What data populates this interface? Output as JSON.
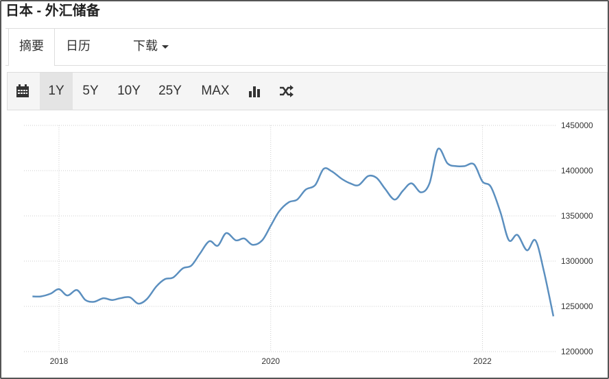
{
  "header": {
    "title": "日本 - 外汇储备"
  },
  "tabs": [
    "摘要",
    "日历",
    "下载"
  ],
  "toolbar": [
    "1Y",
    "5Y",
    "10Y",
    "25Y",
    "MAX"
  ],
  "chart_data": {
    "type": "line",
    "x": [
      2017.75,
      2017.83,
      2017.92,
      2018.0,
      2018.08,
      2018.17,
      2018.25,
      2018.33,
      2018.42,
      2018.5,
      2018.58,
      2018.67,
      2018.75,
      2018.83,
      2018.92,
      2019.0,
      2019.08,
      2019.17,
      2019.25,
      2019.33,
      2019.42,
      2019.5,
      2019.58,
      2019.67,
      2019.75,
      2019.83,
      2019.92,
      2020.0,
      2020.08,
      2020.17,
      2020.25,
      2020.33,
      2020.42,
      2020.5,
      2020.58,
      2020.67,
      2020.75,
      2020.83,
      2020.92,
      2021.0,
      2021.08,
      2021.17,
      2021.25,
      2021.33,
      2021.42,
      2021.5,
      2021.58,
      2021.67,
      2021.75,
      2021.83,
      2021.92,
      2022.0,
      2022.08,
      2022.17,
      2022.25,
      2022.33,
      2022.42,
      2022.5,
      2022.58,
      2022.67
    ],
    "series": [
      {
        "color": "#5b8fbf",
        "values": [
          1261000,
          1261000,
          1264000,
          1269000,
          1262000,
          1268000,
          1257000,
          1255000,
          1259000,
          1257000,
          1259000,
          1260000,
          1253000,
          1258000,
          1272000,
          1280000,
          1282000,
          1292000,
          1295000,
          1308000,
          1322000,
          1317000,
          1331000,
          1323000,
          1325000,
          1318000,
          1323000,
          1339000,
          1355000,
          1365000,
          1368000,
          1379000,
          1384000,
          1402000,
          1399000,
          1391000,
          1386000,
          1384000,
          1394000,
          1392000,
          1380000,
          1368000,
          1378000,
          1386000,
          1376000,
          1386000,
          1424000,
          1408000,
          1405000,
          1405000,
          1407000,
          1388000,
          1382000,
          1354000,
          1323000,
          1329000,
          1312000,
          1323000,
          1289000,
          1239000
        ]
      }
    ],
    "xlim": [
      2017.67,
      2022.69
    ],
    "xticks": [
      2018,
      2020,
      2022
    ],
    "ylim": [
      1200000,
      1450000
    ],
    "yticks": [
      1200000,
      1250000,
      1300000,
      1350000,
      1400000,
      1450000
    ],
    "grid": true
  }
}
